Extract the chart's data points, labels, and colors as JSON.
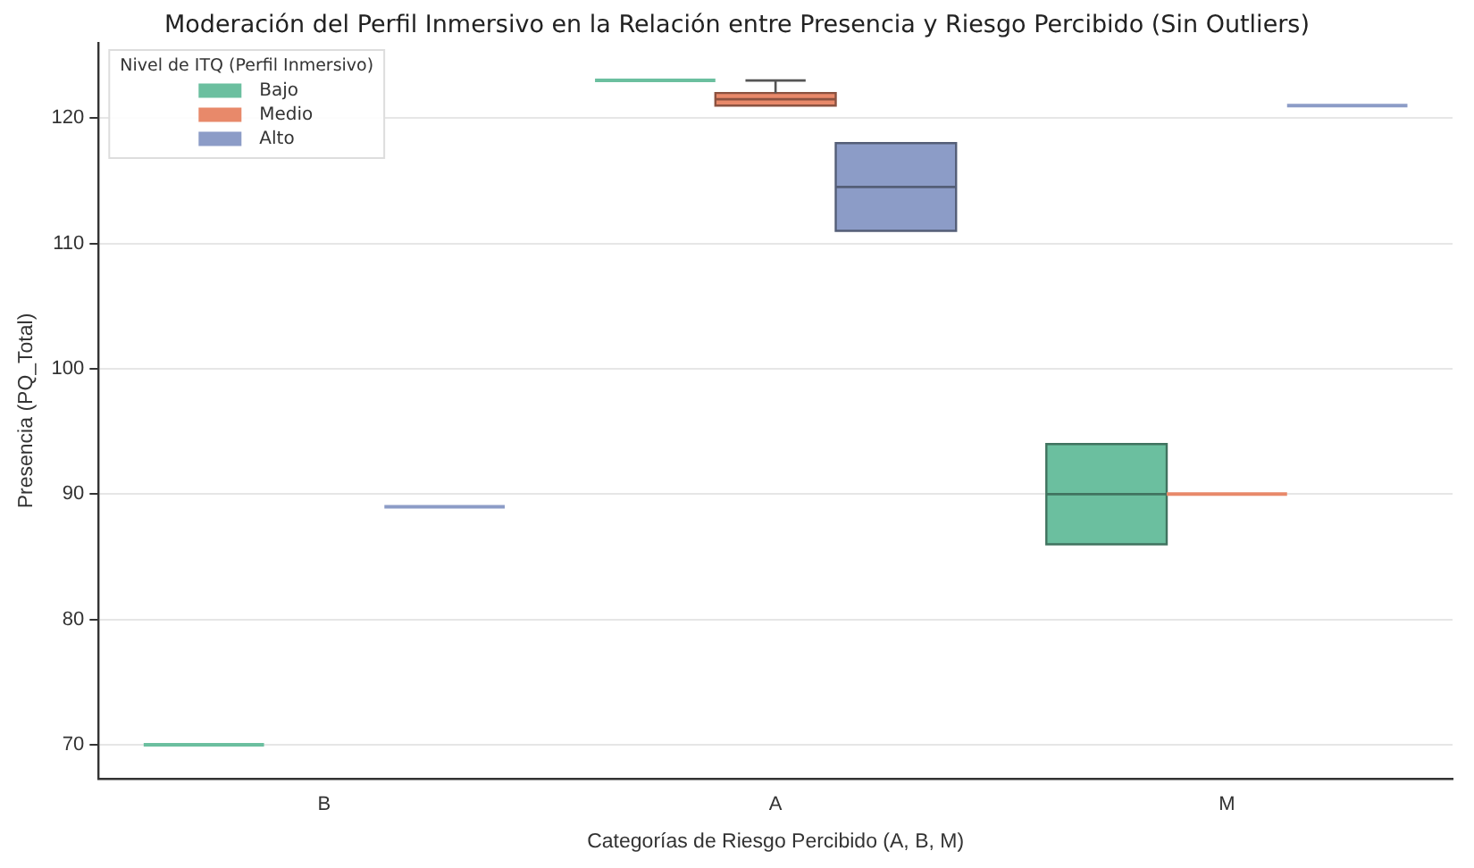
{
  "chart_data": {
    "type": "box",
    "title": "Moderación del Perfil Inmersivo en la Relación entre Presencia y Riesgo Percibido (Sin Outliers)",
    "xlabel": "Categorías de Riesgo Percibido (A, B, M)",
    "ylabel": "Presencia (PQ_Total)",
    "legend_title": "Nivel de ITQ (Perfil Inmersivo)",
    "categories": [
      "B",
      "A",
      "M"
    ],
    "series": [
      {
        "name": "Bajo",
        "color": "#6bbf9f",
        "boxes": [
          {
            "low": 70,
            "q1": 70,
            "median": 70,
            "q3": 70,
            "high": 70
          },
          {
            "low": 123,
            "q1": 123,
            "median": 123,
            "q3": 123,
            "high": 123
          },
          {
            "low": 86,
            "q1": 86,
            "median": 90,
            "q3": 94,
            "high": 94
          }
        ]
      },
      {
        "name": "Medio",
        "color": "#e8896a",
        "boxes": [
          null,
          {
            "low": 121,
            "q1": 121,
            "median": 121.5,
            "q3": 122,
            "high": 123
          },
          {
            "low": 90,
            "q1": 90,
            "median": 90,
            "q3": 90,
            "high": 90
          }
        ]
      },
      {
        "name": "Alto",
        "color": "#8c9cc7",
        "boxes": [
          {
            "low": 89,
            "q1": 89,
            "median": 89,
            "q3": 89,
            "high": 89
          },
          {
            "low": 111,
            "q1": 111,
            "median": 114.5,
            "q3": 118,
            "high": 118
          },
          {
            "low": 121,
            "q1": 121,
            "median": 121,
            "q3": 121,
            "high": 121
          }
        ]
      }
    ],
    "ylim": [
      67.3,
      126
    ],
    "yticks": [
      70,
      80,
      90,
      100,
      110,
      120
    ],
    "grid": "y",
    "legend": "top left"
  }
}
